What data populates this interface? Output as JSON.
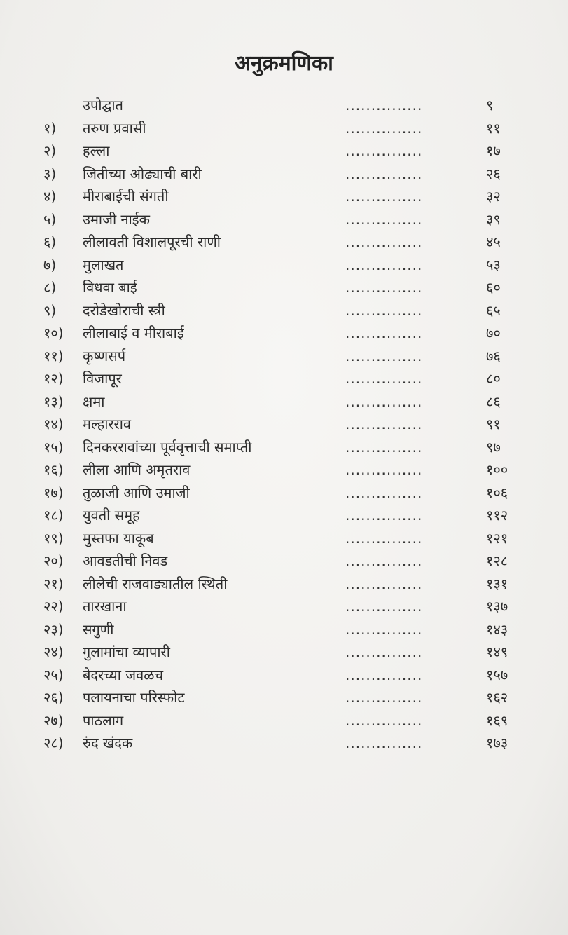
{
  "title": "अनुक्रमणिका",
  "leader": "...............",
  "entries": [
    {
      "num": "",
      "name": "उपोद्घात",
      "page": "९"
    },
    {
      "num": "१)",
      "name": "तरुण प्रवासी",
      "page": "११"
    },
    {
      "num": "२)",
      "name": "हल्ला",
      "page": "१७"
    },
    {
      "num": "३)",
      "name": "जितीच्या ओढ्याची बारी",
      "page": "२६"
    },
    {
      "num": "४)",
      "name": "मीराबाईची संगती",
      "page": "३२"
    },
    {
      "num": "५)",
      "name": "उमाजी नाईक",
      "page": "३९"
    },
    {
      "num": "६)",
      "name": "लीलावती विशालपूरची राणी",
      "page": "४५"
    },
    {
      "num": "७)",
      "name": "मुलाखत",
      "page": "५३"
    },
    {
      "num": "८)",
      "name": "विधवा बाई",
      "page": "६०"
    },
    {
      "num": "९)",
      "name": "दरोडेखोराची स्त्री",
      "page": "६५"
    },
    {
      "num": "१०)",
      "name": "लीलाबाई व मीराबाई",
      "page": "७०"
    },
    {
      "num": "११)",
      "name": "कृष्णसर्प",
      "page": "७६"
    },
    {
      "num": "१२)",
      "name": "विजापूर",
      "page": "८०"
    },
    {
      "num": "१३)",
      "name": "क्षमा",
      "page": "८६"
    },
    {
      "num": "१४)",
      "name": "मल्हारराव",
      "page": "९१"
    },
    {
      "num": "१५)",
      "name": "दिनकररावांच्या पूर्ववृत्ताची समाप्ती",
      "page": "९७"
    },
    {
      "num": "१६)",
      "name": "लीला आणि अमृतराव",
      "page": "१००"
    },
    {
      "num": "१७)",
      "name": "तुळाजी आणि उमाजी",
      "page": "१०६"
    },
    {
      "num": "१८)",
      "name": "युवती समूह",
      "page": "११२"
    },
    {
      "num": "१९)",
      "name": "मुस्तफा याकूब",
      "page": "१२१"
    },
    {
      "num": "२०)",
      "name": "आवडतीची निवड",
      "page": "१२८"
    },
    {
      "num": "२१)",
      "name": "लीलेची राजवाड्यातील स्थिती",
      "page": "१३१"
    },
    {
      "num": "२२)",
      "name": "तारखाना",
      "page": "१३७"
    },
    {
      "num": "२३)",
      "name": "सगुणी",
      "page": "१४३"
    },
    {
      "num": "२४)",
      "name": "गुलामांचा व्यापारी",
      "page": "१४९"
    },
    {
      "num": "२५)",
      "name": "बेदरच्या जवळच",
      "page": "१५७"
    },
    {
      "num": "२६)",
      "name": "पलायनाचा परिस्फोट",
      "page": "१६२"
    },
    {
      "num": "२७)",
      "name": "पाठलाग",
      "page": "१६९"
    },
    {
      "num": "२८)",
      "name": "रुंद खंदक",
      "page": "१७३"
    }
  ]
}
